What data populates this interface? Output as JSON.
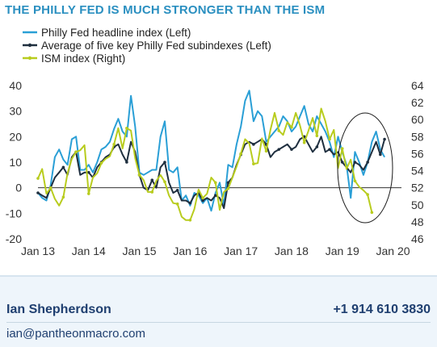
{
  "title": "THE PHILLY FED IS MUCH STRONGER THAN THE ISM",
  "colors": {
    "title": "#2a8fc0",
    "philly_headline": "#2a9fd6",
    "philly_average": "#1f2f3f",
    "ism": "#b8cc1e",
    "axis_text": "#333333",
    "footer_text": "#1f3f70",
    "footer_bg": "#eef5fb"
  },
  "footer": {
    "author": "Ian Shepherdson",
    "phone": "+1 914 610 3830",
    "email": "ian@pantheonmacro.com"
  },
  "chart_data": {
    "type": "line",
    "title": "THE PHILLY FED IS MUCH STRONGER THAN THE ISM",
    "x_tick_labels": [
      "Jan 13",
      "Jan 14",
      "Jan 15",
      "Jan 16",
      "Jan 17",
      "Jan 18",
      "Jan 19",
      "Jan 20"
    ],
    "x_range_months": [
      0,
      86
    ],
    "y_left": {
      "ticks": [
        "40",
        "30",
        "20",
        "10",
        "0",
        "-10",
        "-20"
      ],
      "lim": [
        -20,
        40
      ]
    },
    "y_right": {
      "ticks": [
        "64",
        "62",
        "60",
        "58",
        "56",
        "54",
        "52",
        "50",
        "48",
        "46"
      ],
      "lim": [
        46,
        64
      ]
    },
    "zero_line": 0,
    "legend_position": "top-left",
    "annotation": "ellipse highlighting latest data (mid-2019)",
    "series": [
      {
        "name": "Philly Fed headline index (Left)",
        "axis": "left",
        "marker": false,
        "values": [
          -2,
          -4,
          -5,
          1,
          12,
          15,
          11,
          9,
          19,
          20,
          7,
          7,
          9,
          6,
          10,
          15,
          16,
          18,
          23,
          27,
          22,
          20,
          36,
          24,
          6,
          5,
          6,
          7,
          7,
          20,
          26,
          7,
          6,
          8,
          -5,
          -3,
          -7,
          -2,
          -3,
          -6,
          -4,
          -9,
          -2,
          2,
          -7,
          9,
          8,
          17,
          24,
          34,
          38,
          26,
          30,
          28,
          18,
          20,
          22,
          24,
          28,
          26,
          22,
          24,
          28,
          32,
          25,
          22,
          28,
          25,
          22,
          18,
          12,
          20,
          14,
          9,
          -4,
          14,
          10,
          5,
          10,
          18,
          22,
          15,
          12
        ]
      },
      {
        "name": "Average of five key Philly Fed subindexes (Left)",
        "axis": "left",
        "marker": true,
        "values": [
          -2,
          -3,
          -4,
          0,
          4,
          6,
          8,
          5,
          12,
          14,
          5,
          6,
          6,
          4,
          8,
          10,
          12,
          13,
          16,
          17,
          13,
          10,
          18,
          14,
          5,
          0,
          -1,
          3,
          0,
          8,
          10,
          2,
          -2,
          -1,
          -5,
          -5,
          -6,
          -3,
          -2,
          -5,
          -4,
          -5,
          -3,
          -4,
          -8,
          2,
          4,
          9,
          13,
          17,
          18,
          17,
          18,
          19,
          17,
          12,
          14,
          15,
          16,
          17,
          15,
          16,
          19,
          20,
          17,
          14,
          16,
          20,
          14,
          15,
          13,
          14,
          10,
          8,
          6,
          10,
          9,
          7,
          10,
          14,
          18,
          13,
          19
        ]
      },
      {
        "name": "ISM index (Right)",
        "axis": "right",
        "marker": true,
        "values": [
          53.1,
          54.2,
          51.3,
          52.0,
          50.7,
          49.9,
          50.9,
          53.7,
          55.4,
          56.2,
          56.4,
          57.0,
          51.3,
          53.2,
          53.7,
          54.9,
          55.4,
          55.7,
          57.1,
          59.0,
          56.6,
          59.0,
          58.7,
          55.5,
          53.5,
          52.9,
          51.5,
          51.5,
          52.8,
          53.5,
          52.7,
          51.1,
          50.2,
          50.1,
          48.6,
          48.2,
          48.2,
          49.5,
          51.8,
          50.8,
          51.3,
          53.2,
          52.6,
          49.4,
          51.5,
          51.9,
          53.2,
          54.5,
          56.0,
          57.7,
          57.2,
          54.8,
          54.9,
          57.8,
          56.3,
          58.8,
          60.8,
          58.7,
          58.2,
          59.7,
          59.1,
          60.8,
          59.3,
          57.3,
          58.7,
          60.2,
          58.1,
          61.3,
          59.8,
          57.7,
          58.8,
          54.3,
          56.6,
          54.2,
          55.3,
          52.8,
          52.1,
          51.7,
          51.2,
          49.1
        ]
      }
    ]
  }
}
